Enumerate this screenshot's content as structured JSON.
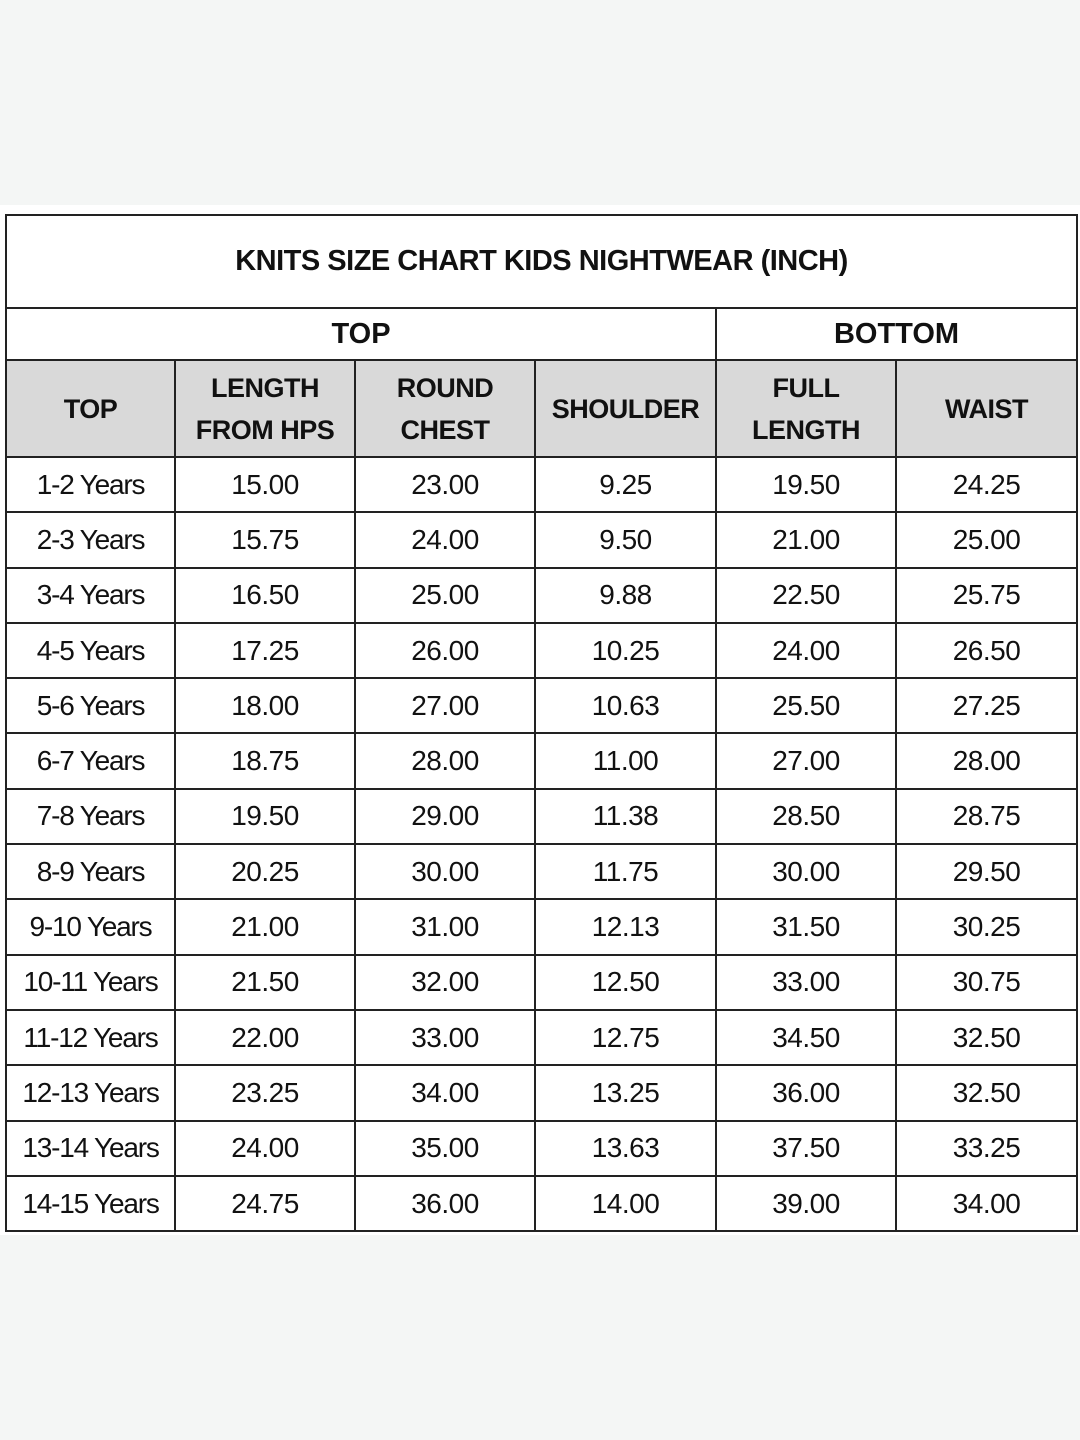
{
  "title": "KNITS SIZE CHART KIDS NIGHTWEAR (INCH)",
  "groups": {
    "top": "TOP",
    "bottom": "BOTTOM"
  },
  "headers": [
    "TOP",
    "LENGTH FROM HPS",
    "ROUND CHEST",
    "SHOULDER",
    "FULL LENGTH",
    "WAIST"
  ],
  "rows": [
    [
      "1-2 Years",
      "15.00",
      "23.00",
      "9.25",
      "19.50",
      "24.25"
    ],
    [
      "2-3 Years",
      "15.75",
      "24.00",
      "9.50",
      "21.00",
      "25.00"
    ],
    [
      "3-4 Years",
      "16.50",
      "25.00",
      "9.88",
      "22.50",
      "25.75"
    ],
    [
      "4-5 Years",
      "17.25",
      "26.00",
      "10.25",
      "24.00",
      "26.50"
    ],
    [
      "5-6 Years",
      "18.00",
      "27.00",
      "10.63",
      "25.50",
      "27.25"
    ],
    [
      "6-7 Years",
      "18.75",
      "28.00",
      "11.00",
      "27.00",
      "28.00"
    ],
    [
      "7-8 Years",
      "19.50",
      "29.00",
      "11.38",
      "28.50",
      "28.75"
    ],
    [
      "8-9 Years",
      "20.25",
      "30.00",
      "11.75",
      "30.00",
      "29.50"
    ],
    [
      "9-10 Years",
      "21.00",
      "31.00",
      "12.13",
      "31.50",
      "30.25"
    ],
    [
      "10-11 Years",
      "21.50",
      "32.00",
      "12.50",
      "33.00",
      "30.75"
    ],
    [
      "11-12 Years",
      "22.00",
      "33.00",
      "12.75",
      "34.50",
      "32.50"
    ],
    [
      "12-13 Years",
      "23.25",
      "34.00",
      "13.25",
      "36.00",
      "32.50"
    ],
    [
      "13-14 Years",
      "24.00",
      "35.00",
      "13.63",
      "37.50",
      "33.25"
    ],
    [
      "14-15 Years",
      "24.75",
      "36.00",
      "14.00",
      "39.00",
      "34.00"
    ]
  ],
  "colors": {
    "header_bg": "#d9d9d9",
    "border": "#222222",
    "page_bg": "#f4f6f5"
  }
}
